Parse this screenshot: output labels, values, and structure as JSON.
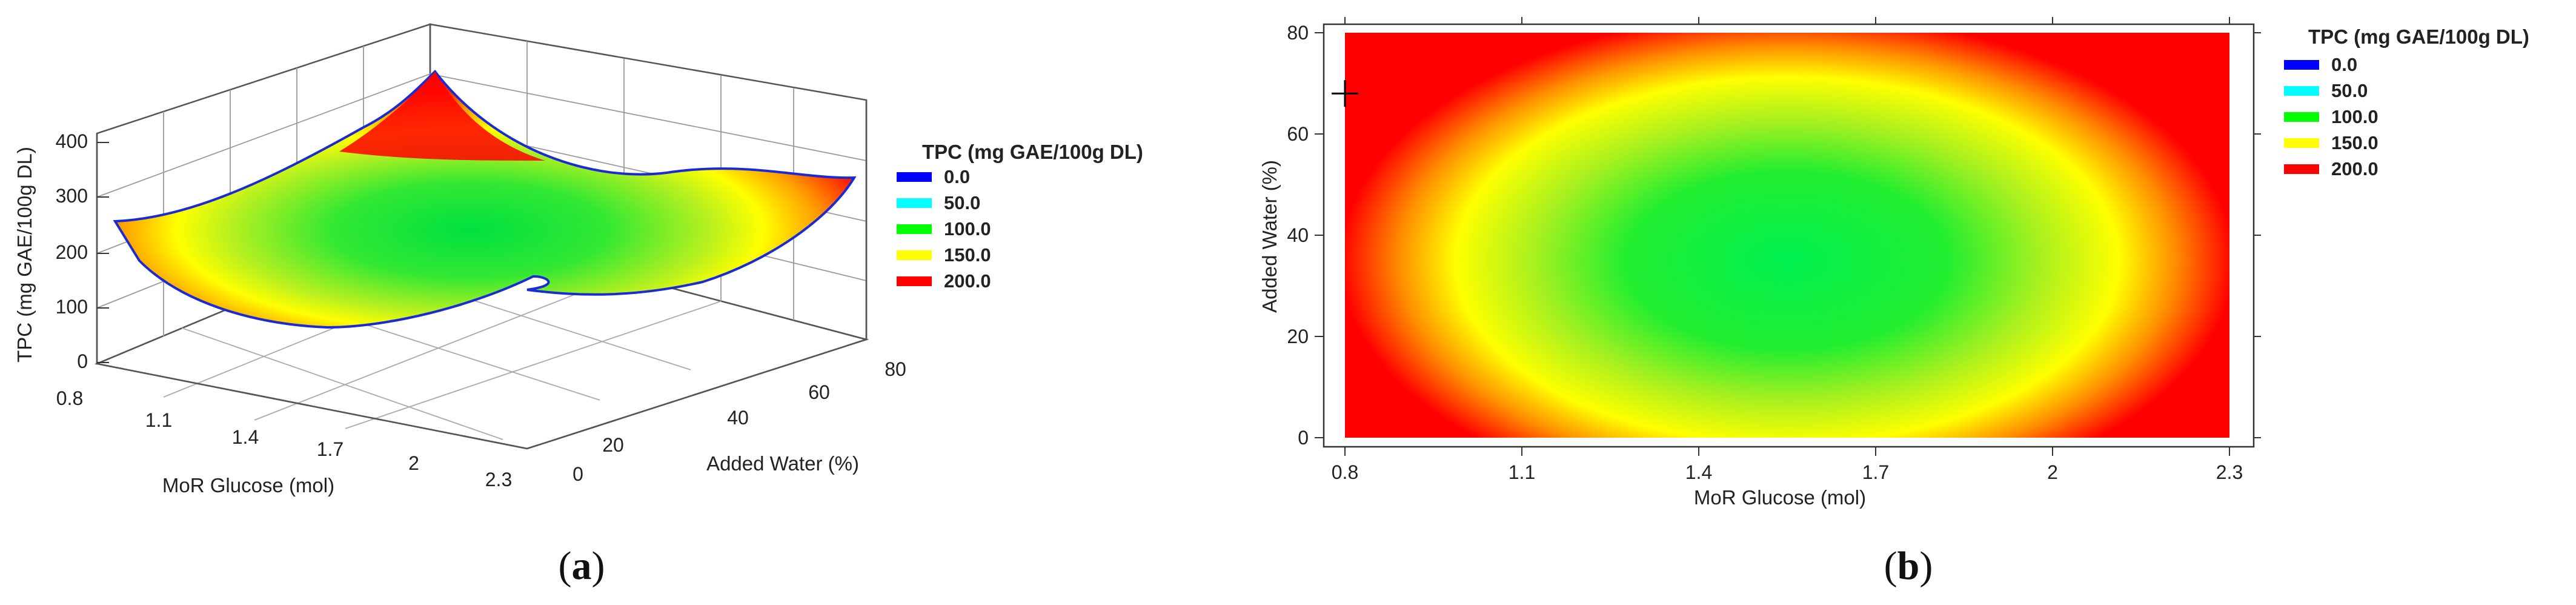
{
  "chart_data": [
    {
      "panel": "a",
      "type": "surface3d",
      "caption_letter": "a",
      "zlabel": "TPC (mg GAE/100g DL)",
      "xlabel": "MoR Glucose (mol)",
      "ylabel": "Added Water (%)",
      "x_ticks": [
        "0.8",
        "1.1",
        "1.4",
        "1.7",
        "2",
        "2.3"
      ],
      "y_ticks": [
        "0",
        "20",
        "40",
        "60",
        "80"
      ],
      "z_ticks": [
        "0",
        "100",
        "200",
        "300",
        "400"
      ],
      "xlim": [
        0.8,
        2.3
      ],
      "ylim": [
        0,
        80
      ],
      "zlim": [
        0,
        400
      ],
      "corner_values": [
        {
          "x": 0.8,
          "y": 0,
          "z": 245
        },
        {
          "x": 0.8,
          "y": 80,
          "z": 400
        },
        {
          "x": 2.3,
          "y": 0,
          "z": 160
        },
        {
          "x": 2.3,
          "y": 80,
          "z": 325
        }
      ],
      "minimum": {
        "x": 1.55,
        "y": 35,
        "z": 60
      },
      "legend_title": "TPC (mg GAE/100g DL)",
      "legend": [
        {
          "label": "0.0",
          "color": "#0000ff"
        },
        {
          "label": "50.0",
          "color": "#00ffff"
        },
        {
          "label": "100.0",
          "color": "#00ff00"
        },
        {
          "label": "150.0",
          "color": "#ffff00"
        },
        {
          "label": "200.0",
          "color": "#ff0000"
        }
      ]
    },
    {
      "panel": "b",
      "type": "heatmap",
      "caption_letter": "b",
      "xlabel": "MoR Glucose (mol)",
      "ylabel": "Added Water (%)",
      "x_ticks": [
        "0.8",
        "1.1",
        "1.4",
        "1.7",
        "2",
        "2.3"
      ],
      "y_ticks": [
        "0",
        "20",
        "40",
        "60",
        "80"
      ],
      "xlim": [
        0.8,
        2.3
      ],
      "ylim": [
        0,
        80
      ],
      "center": {
        "x": 1.55,
        "y": 35
      },
      "marker": {
        "x": 0.8,
        "y": 68
      },
      "legend_title": "TPC (mg GAE/100g DL)",
      "legend": [
        {
          "label": "0.0",
          "color": "#0000ff"
        },
        {
          "label": "50.0",
          "color": "#00ffff"
        },
        {
          "label": "100.0",
          "color": "#00ff00"
        },
        {
          "label": "150.0",
          "color": "#ffff00"
        },
        {
          "label": "200.0",
          "color": "#ff0000"
        }
      ]
    }
  ]
}
